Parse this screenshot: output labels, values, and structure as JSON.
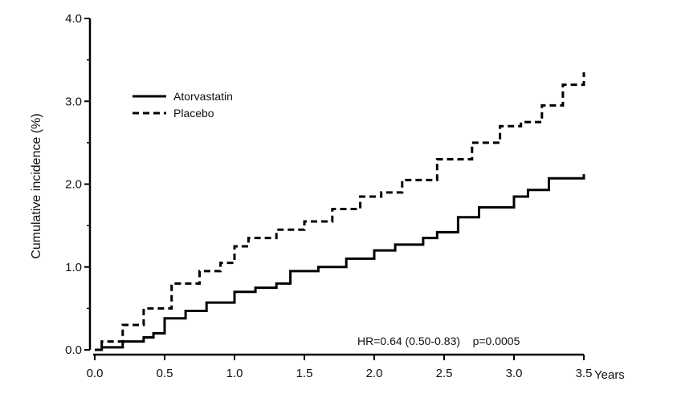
{
  "chart_data": {
    "type": "line",
    "title": "",
    "xlabel": "Years",
    "ylabel": "Cumulative incidence (%)",
    "xlim": [
      0,
      3.5
    ],
    "ylim": [
      0,
      4.0
    ],
    "xticks": [
      "0.0",
      "0.5",
      "1.0",
      "1.5",
      "2.0",
      "2.5",
      "3.0",
      "3.5"
    ],
    "yticks": [
      "0.0",
      "1.0",
      "2.0",
      "3.0",
      "4.0"
    ],
    "grid": false,
    "legend_position": "top-left",
    "annotation": "HR=0.64 (0.50-0.83)    p=0.0005",
    "series": [
      {
        "name": "Atorvastatin",
        "style": "solid",
        "color": "#000000",
        "x": [
          0,
          0.05,
          0.2,
          0.35,
          0.42,
          0.5,
          0.65,
          0.8,
          1.0,
          1.15,
          1.3,
          1.4,
          1.6,
          1.8,
          2.0,
          2.15,
          2.35,
          2.45,
          2.6,
          2.75,
          3.0,
          3.1,
          3.25,
          3.5
        ],
        "y": [
          0,
          0.03,
          0.1,
          0.15,
          0.2,
          0.38,
          0.47,
          0.57,
          0.7,
          0.75,
          0.8,
          0.95,
          1.0,
          1.1,
          1.2,
          1.27,
          1.35,
          1.42,
          1.6,
          1.72,
          1.85,
          1.93,
          2.07,
          2.12
        ]
      },
      {
        "name": "Placebo",
        "style": "dashed",
        "color": "#000000",
        "x": [
          0,
          0.05,
          0.2,
          0.35,
          0.55,
          0.75,
          0.9,
          1.0,
          1.1,
          1.3,
          1.5,
          1.7,
          1.9,
          2.05,
          2.2,
          2.45,
          2.7,
          2.9,
          3.05,
          3.2,
          3.35,
          3.5
        ],
        "y": [
          0,
          0.1,
          0.3,
          0.5,
          0.8,
          0.95,
          1.05,
          1.25,
          1.35,
          1.45,
          1.55,
          1.7,
          1.85,
          1.9,
          2.05,
          2.3,
          2.5,
          2.7,
          2.75,
          2.95,
          3.2,
          3.35
        ]
      }
    ]
  }
}
